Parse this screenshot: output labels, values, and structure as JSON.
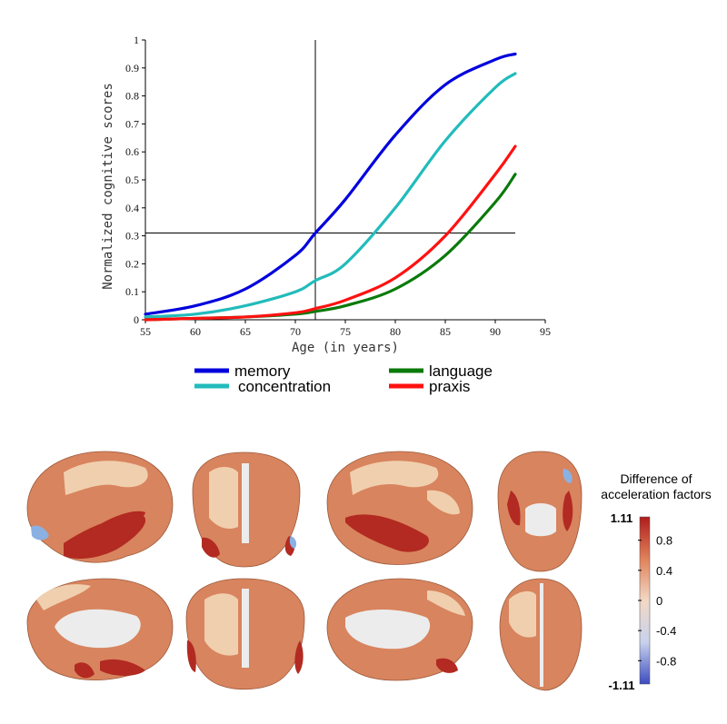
{
  "chart_data": {
    "type": "line",
    "xlabel": "Age (in years)",
    "ylabel": "Normalized cognitive scores",
    "xlim": [
      55,
      95
    ],
    "ylim": [
      0,
      1
    ],
    "xticks": [
      "55",
      "60",
      "65",
      "70",
      "75",
      "80",
      "85",
      "90",
      "95"
    ],
    "yticks": [
      "0",
      "0.1",
      "0.2",
      "0.3",
      "0.4",
      "0.5",
      "0.6",
      "0.7",
      "0.8",
      "0.9",
      "1"
    ],
    "reference_lines": {
      "x": 72,
      "y": 0.31
    },
    "legend_placement": "bottom",
    "series": [
      {
        "name": "memory",
        "color": "#0000dd",
        "x": [
          55,
          60,
          65,
          70,
          72,
          75,
          80,
          85,
          90,
          92
        ],
        "y": [
          0.02,
          0.05,
          0.11,
          0.23,
          0.31,
          0.43,
          0.66,
          0.84,
          0.93,
          0.95
        ]
      },
      {
        "name": "concentration",
        "color": "#22bbbb",
        "x": [
          55,
          60,
          65,
          70,
          72,
          75,
          80,
          85,
          90,
          92
        ],
        "y": [
          0.01,
          0.02,
          0.05,
          0.1,
          0.14,
          0.2,
          0.4,
          0.64,
          0.83,
          0.88
        ]
      },
      {
        "name": "language",
        "color": "#0a7a0a",
        "x": [
          55,
          60,
          65,
          70,
          72,
          75,
          80,
          85,
          90,
          92
        ],
        "y": [
          0.0,
          0.005,
          0.01,
          0.02,
          0.03,
          0.05,
          0.11,
          0.23,
          0.42,
          0.52
        ]
      },
      {
        "name": "praxis",
        "color": "#ff1111",
        "x": [
          55,
          60,
          65,
          70,
          72,
          75,
          80,
          85,
          90,
          92
        ],
        "y": [
          0.0,
          0.005,
          0.01,
          0.025,
          0.04,
          0.07,
          0.15,
          0.3,
          0.52,
          0.62
        ]
      }
    ]
  },
  "colorbar": {
    "title_line1": "Difference of",
    "title_line2": "acceleration factors",
    "max_label": "1.11",
    "min_label": "-1.11",
    "ticks": [
      "0.8",
      "0.4",
      "0",
      "-0.4",
      "-0.8"
    ],
    "tick_values": [
      0.8,
      0.4,
      0,
      -0.4,
      -0.8
    ],
    "range": [
      -1.11,
      1.11
    ],
    "colors": [
      "#b01c1c",
      "#e0815a",
      "#f2d8c5",
      "#c8d2ec",
      "#3b4cc0"
    ]
  },
  "brain_colors": {
    "base": "#d8845e",
    "light": "#f0cfae",
    "dark": "#b22a22",
    "medial": "#ececec",
    "blue": "#8ab1e2"
  }
}
